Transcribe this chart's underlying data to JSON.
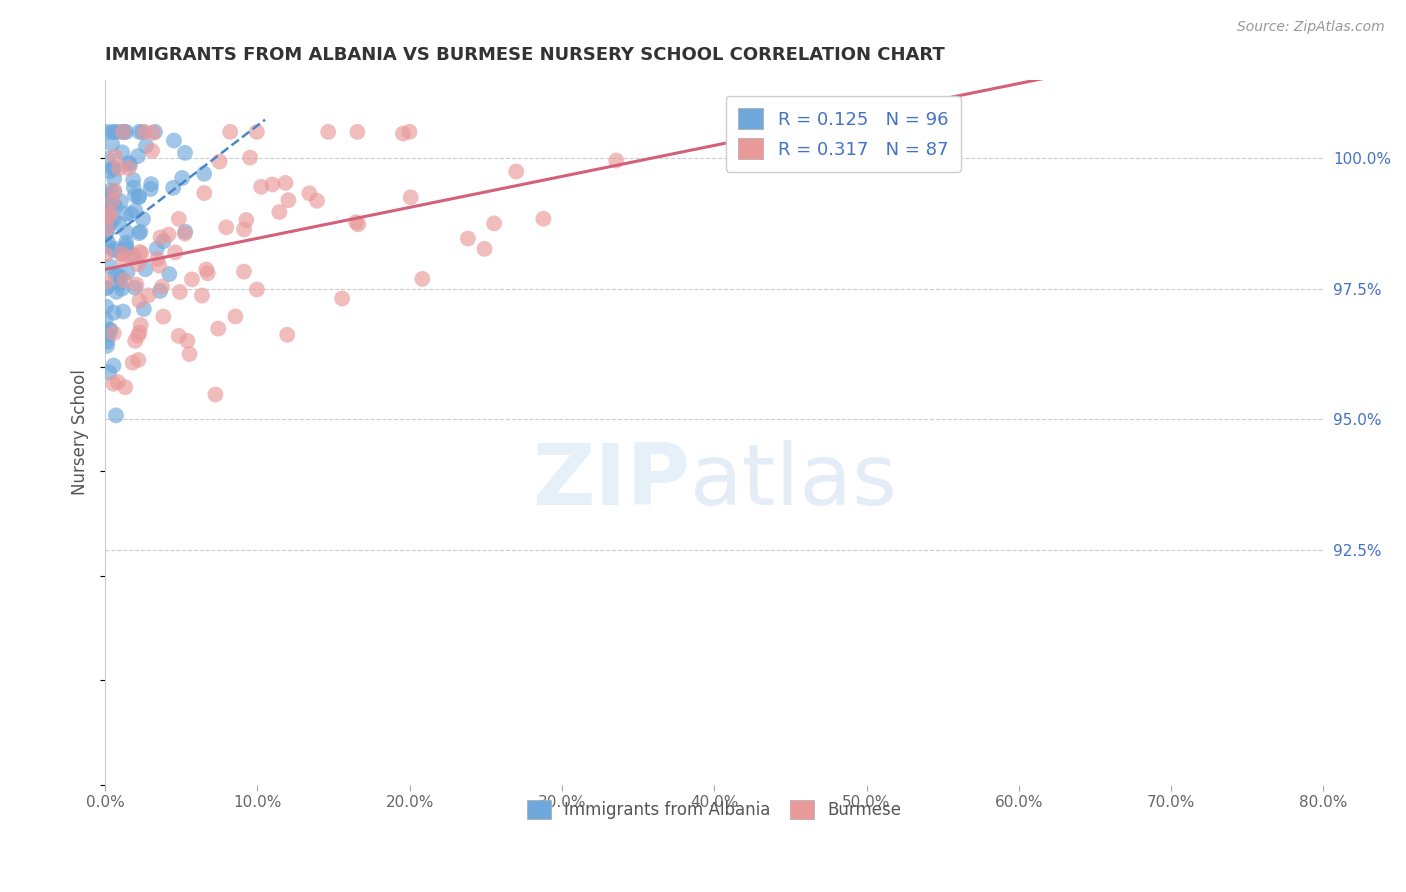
{
  "title": "IMMIGRANTS FROM ALBANIA VS BURMESE NURSERY SCHOOL CORRELATION CHART",
  "source": "Source: ZipAtlas.com",
  "ylabel": "Nursery School",
  "xlim": [
    0.0,
    80.0
  ],
  "ylim": [
    88.0,
    101.5
  ],
  "xticks": [
    0.0,
    10.0,
    20.0,
    30.0,
    40.0,
    50.0,
    60.0,
    70.0,
    80.0
  ],
  "yticks_right": [
    100.0,
    97.5,
    95.0,
    92.5
  ],
  "ytick_labels_right": [
    "100.0%",
    "97.5%",
    "95.0%",
    "92.5%"
  ],
  "xtick_labels": [
    "0.0%",
    "10.0%",
    "20.0%",
    "30.0%",
    "40.0%",
    "50.0%",
    "60.0%",
    "70.0%",
    "80.0%"
  ],
  "albania_color": "#6fa8dc",
  "burmese_color": "#ea9999",
  "albania_line_color": "#4a86c8",
  "burmese_line_color": "#d4607a",
  "albania_R": 0.125,
  "albania_N": 96,
  "burmese_R": 0.317,
  "burmese_N": 87,
  "legend_label_albania": "Immigrants from Albania",
  "legend_label_burmese": "Burmese",
  "watermark_zip": "ZIP",
  "watermark_atlas": "atlas",
  "background_color": "#ffffff",
  "grid_color": "#cccccc",
  "title_color": "#333333",
  "source_color": "#999999",
  "axis_label_color": "#555555",
  "legend_text_color": "#4472c4",
  "bottom_legend_color": "#555555",
  "right_axis_color": "#4472c4"
}
